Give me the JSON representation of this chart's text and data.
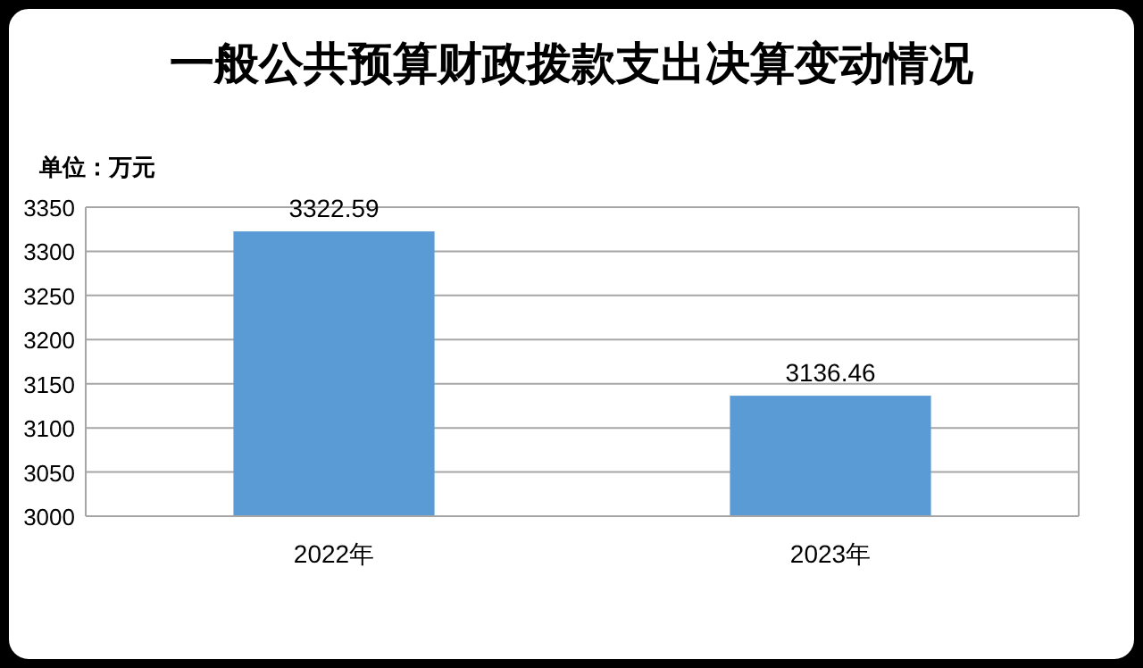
{
  "chart_data": {
    "type": "bar",
    "title": "一般公共预算财政拨款支出决算变动情况",
    "annotations": [
      "单位：万元"
    ],
    "categories": [
      "2022年",
      "2023年"
    ],
    "values": [
      3322.59,
      3136.46
    ],
    "color": "#5b9bd5",
    "ylim": [
      3000,
      3350
    ],
    "yticks": [
      3000,
      3050,
      3100,
      3150,
      3200,
      3250,
      3300,
      3350
    ],
    "grid": "y",
    "data_labels": true
  }
}
